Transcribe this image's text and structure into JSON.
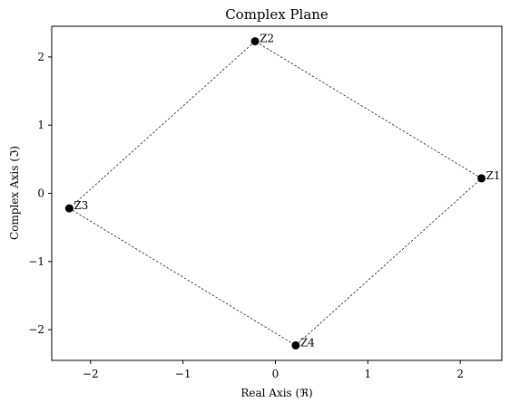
{
  "chart_data": {
    "type": "scatter",
    "title": "Complex Plane",
    "xlabel": "Real Axis (ℜ)",
    "ylabel": "Complex Axis (ℑ)",
    "xlim": [
      -2.42,
      2.45
    ],
    "ylim": [
      -2.45,
      2.45
    ],
    "x_ticks": [
      {
        "value": -2,
        "label": "−2"
      },
      {
        "value": -1,
        "label": "−1"
      },
      {
        "value": 0,
        "label": "0"
      },
      {
        "value": 1,
        "label": "1"
      },
      {
        "value": 2,
        "label": "2"
      }
    ],
    "y_ticks": [
      {
        "value": -2,
        "label": "−2"
      },
      {
        "value": -1,
        "label": "−1"
      },
      {
        "value": 0,
        "label": "0"
      },
      {
        "value": 1,
        "label": "1"
      },
      {
        "value": 2,
        "label": "2"
      }
    ],
    "grid": false,
    "points": [
      {
        "label": "Z1",
        "x": 2.23,
        "y": 0.22
      },
      {
        "label": "Z2",
        "x": -0.22,
        "y": 2.23
      },
      {
        "label": "Z3",
        "x": -2.23,
        "y": -0.22
      },
      {
        "label": "Z4",
        "x": 0.22,
        "y": -2.23
      }
    ],
    "connect_points": true,
    "marker_color": "#000000",
    "line_color": "#000000",
    "line_style": "dashed"
  }
}
